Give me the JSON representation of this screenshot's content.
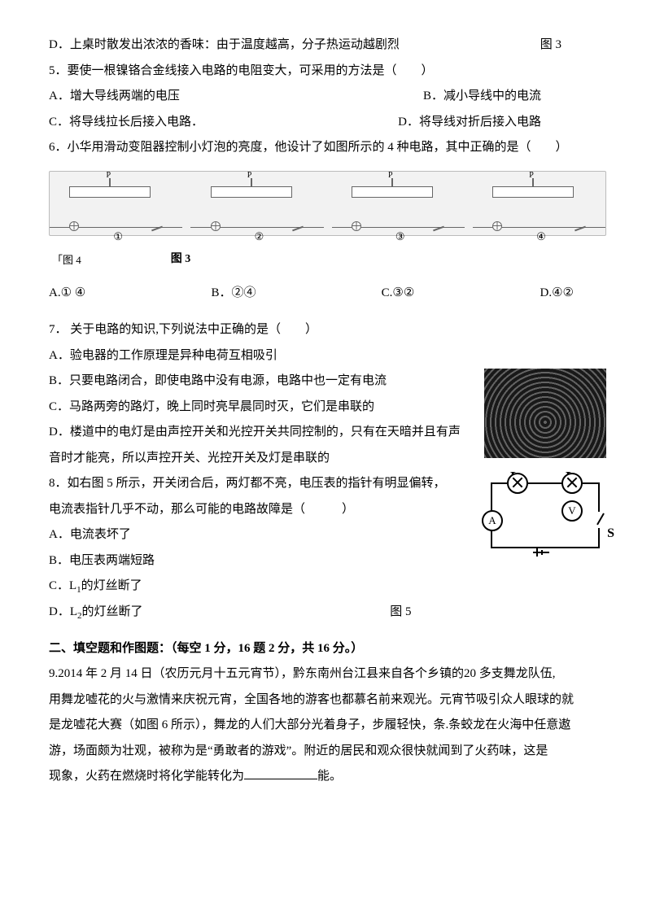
{
  "labels": {
    "fig3": "图 3",
    "fig4": "「图 4",
    "tu3": "图 3",
    "fig5": "图 5"
  },
  "qD": "D．上桌时散发出浓浓的香味：由于温度越高，分子热运动越剧烈",
  "q5": {
    "stem": "5．要使一根镍铬合金线接入电路的电阻变大，可采用的方法是（　　）",
    "A": "A．增大导线两端的电压",
    "B": "B．减小导线中的电流",
    "C": "C．将导线拉长后接入电路．",
    "D2": "D．将导线对折后接入电路"
  },
  "q6": {
    "stem": "6．小华用滑动变阻器控制小灯泡的亮度，他设计了如图所示的 4 种电路，其中正确的是（　　）",
    "n1": "①",
    "n2": "②",
    "n3": "③",
    "n4": "④",
    "A": "A.① ④",
    "B": "B．②④",
    "C": "C.③②",
    "D": "D.④②"
  },
  "q7": {
    "stem": "7．  关于电路的知识,下列说法中正确的是（　　）",
    "A": "A．验电器的工作原理是异种电荷互相吸引",
    "B": "B．只要电路闭合，即使电路中没有电源，电路中也一定有电流",
    "C": "C．马路两旁的路灯，晚上同时亮早晨同时灭，它们是串联的",
    "Dmain": "D．楼道中的电灯是由声控开关和光控开关共同控制的，只有在天暗并且有声",
    "Dnext": "音时才能亮，所以声控开关、光控开关及灯是串联的"
  },
  "q8": {
    "line1": "8．如右图 5 所示，开关闭合后，两灯都不亮，电压表的指针有明显偏转，",
    "line2": "电流表指针几乎不动，那么可能的电路故障是（　　　）",
    "A": "A．电流表坏了",
    "B": "B．电压表两端短路",
    "C": "C．L",
    "Csub": "1",
    "Ctail": "的灯丝断了",
    "D": "D．L",
    "Dsub": "2",
    "Dtail": "的灯丝断了"
  },
  "sch": {
    "L1": "L",
    "L1s": "1",
    "L2": "L",
    "L2s": "2",
    "S": "S",
    "A": "A",
    "V": "V"
  },
  "sec2": "二、填空题和作图题：（每空 1 分，16 题 2 分，共 16 分。）",
  "q9": {
    "l1": "9.2014 年 2 月 14 日（农历元月十五元宵节），黔东南州台江县来自各个乡镇的20 多支舞龙队伍,",
    "l2": "用舞龙嘘花的火与激情来庆祝元宵，全国各地的游客也都慕名前来观光。元宵节吸引众人眼球的就",
    "l3": "是龙嘘花大赛（如图 6 所示），舞龙的人们大部分光着身子，步履轻快，条.条蛟龙在火海中任意遨",
    "l4a": "游，场面颇为壮观，被称为是“勇敢者的游戏”。附近的居民和观众很快就闻到了火药味，这是",
    "l5a": "现象，火药在燃烧时将化学能转化为",
    "l5b": "能。"
  }
}
